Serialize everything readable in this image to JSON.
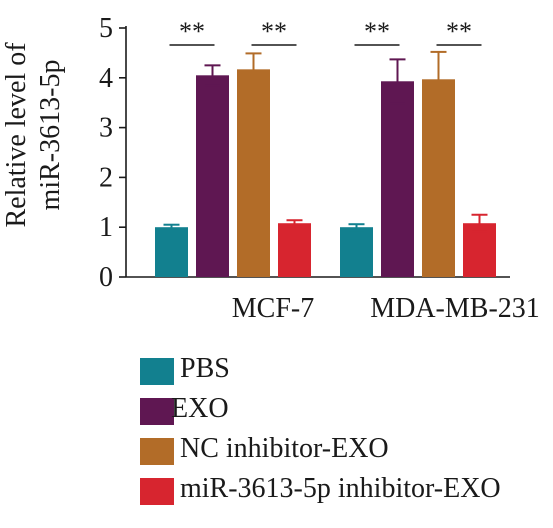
{
  "chart_data": {
    "type": "bar",
    "categories": [
      "MCF-7",
      "MDA-MB-231"
    ],
    "ylabel_lines": [
      "Relative level of",
      "miR-3613-5p"
    ],
    "ylim": [
      0,
      5
    ],
    "yticks": [
      "0",
      "1",
      "2",
      "3",
      "4",
      "5"
    ],
    "grid": false,
    "legend_position": "bottom",
    "series": [
      {
        "name": "PBS",
        "color": "#12808f",
        "values": [
          1.0,
          1.0
        ],
        "errors": [
          0.05,
          0.06
        ]
      },
      {
        "name": "EXO",
        "color": "#5f1752",
        "values": [
          4.05,
          3.93
        ],
        "errors": [
          0.2,
          0.44
        ]
      },
      {
        "name": "NC inhibitor-EXO",
        "color": "#b26c28",
        "values": [
          4.17,
          3.97
        ],
        "errors": [
          0.32,
          0.55
        ]
      },
      {
        "name": "miR-3613-5p inhibitor-EXO",
        "color": "#d7252f",
        "values": [
          1.08,
          1.08
        ],
        "errors": [
          0.06,
          0.17
        ]
      }
    ],
    "significance": [
      {
        "category": "MCF-7",
        "label": "**"
      },
      {
        "category": "MCF-7",
        "label": "**"
      },
      {
        "category": "MDA-MB-231",
        "label": "**"
      },
      {
        "category": "MDA-MB-231",
        "label": "**"
      }
    ]
  }
}
